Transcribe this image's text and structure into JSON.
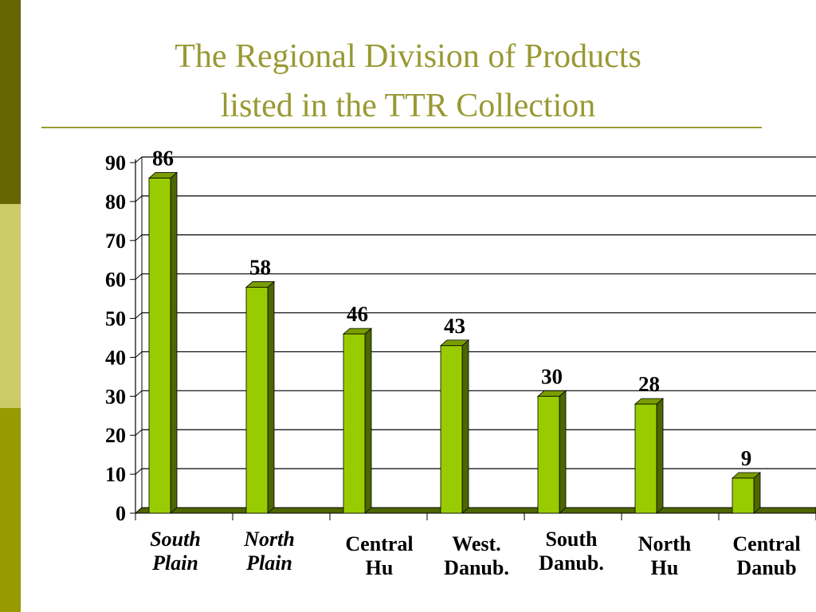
{
  "slide": {
    "title_line1": "The Regional Division of Products",
    "title_line2": "listed in the TTR Collection"
  },
  "chart_data": {
    "type": "bar",
    "categories": [
      "South Plain",
      "North Plain",
      "Central Hu",
      "West. Danub.",
      "South Danub.",
      "North Hu",
      "Central Danub"
    ],
    "category_label_lines": [
      [
        "South",
        "Plain"
      ],
      [
        "North",
        "Plain"
      ],
      [
        "Central",
        "Hu"
      ],
      [
        "West.",
        "Danub."
      ],
      [
        "South",
        "Danub."
      ],
      [
        "North",
        "Hu"
      ],
      [
        "Central",
        "Danub"
      ]
    ],
    "category_italic": [
      true,
      true,
      false,
      false,
      false,
      false,
      false
    ],
    "values": [
      86,
      58,
      46,
      43,
      30,
      28,
      9
    ],
    "ylim": [
      0,
      90
    ],
    "yticks": [
      "0",
      "10",
      "20",
      "30",
      "40",
      "50",
      "60",
      "70",
      "80",
      "90"
    ],
    "grid": true,
    "bar_style": "3d",
    "colors": {
      "bar_front": "#99cc00",
      "bar_side": "#4d6600",
      "bar_top": "#7a9e00",
      "side_band_top": "#666600",
      "side_band_mid": "#cccc66",
      "side_band_bottom": "#999900",
      "title": "#999933"
    }
  }
}
